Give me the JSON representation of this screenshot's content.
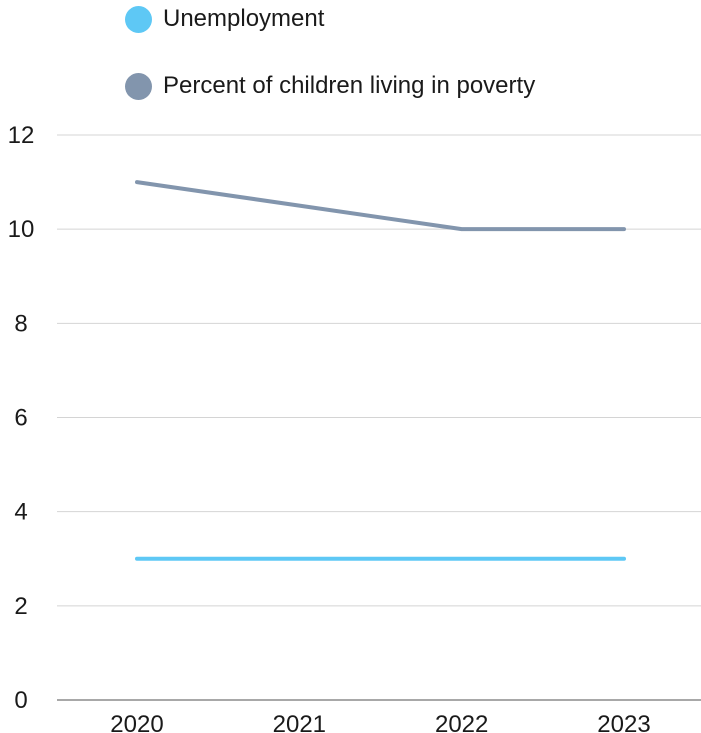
{
  "chart_data": {
    "type": "line",
    "categories": [
      "2020",
      "2021",
      "2022",
      "2023"
    ],
    "series": [
      {
        "name": "Unemployment",
        "values": [
          3,
          3,
          3,
          3
        ],
        "color": "#5ec8f5"
      },
      {
        "name": "Percent of children living in poverty",
        "values": [
          11,
          10.5,
          10,
          10
        ],
        "color": "#8295ad"
      }
    ],
    "ylim": [
      0,
      12
    ],
    "yticks": [
      0,
      2,
      4,
      6,
      8,
      10,
      12
    ],
    "grid": true,
    "legend_position": "top-left",
    "title": "",
    "xlabel": "",
    "ylabel": ""
  }
}
